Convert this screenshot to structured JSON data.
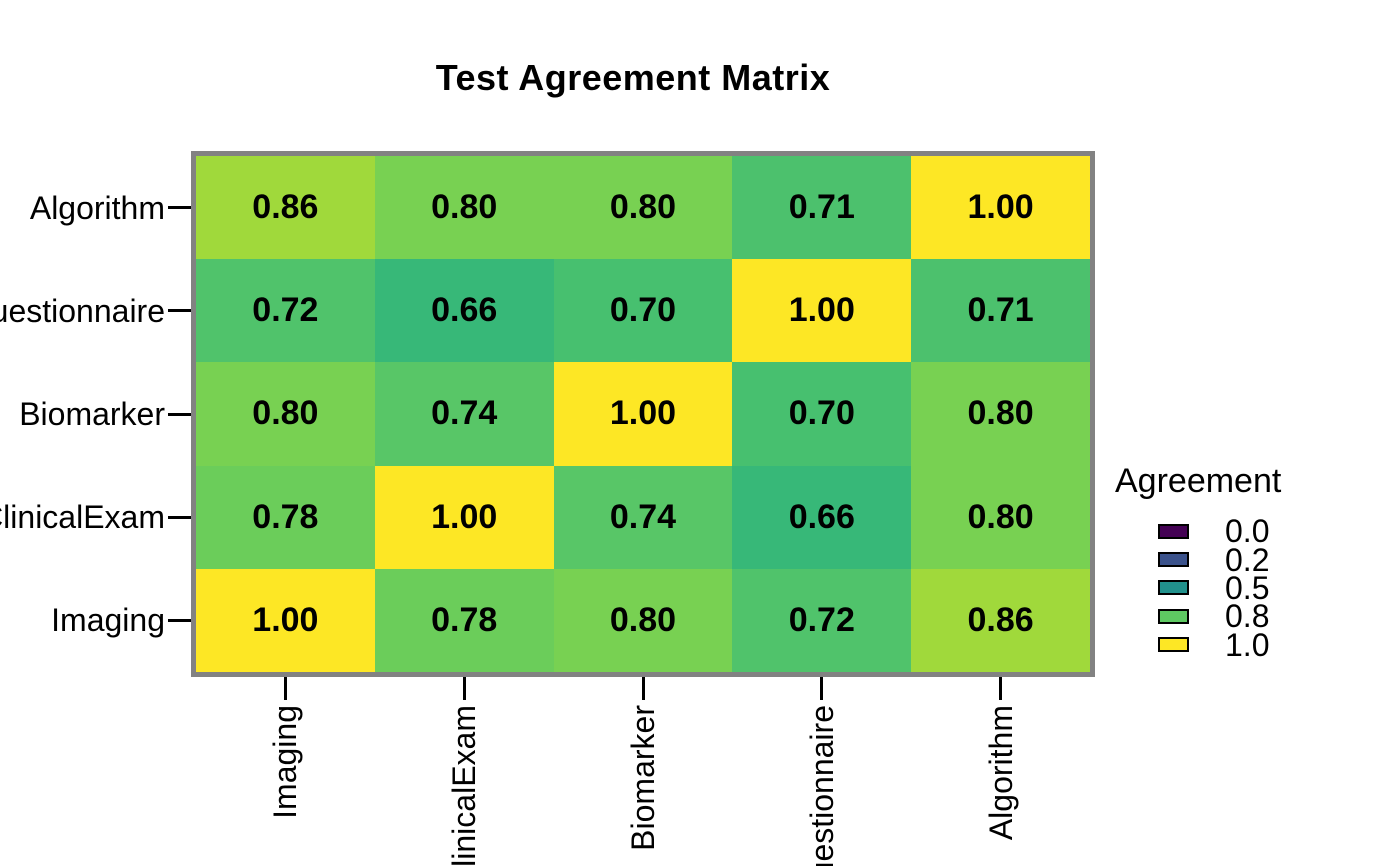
{
  "chart_data": {
    "type": "heatmap",
    "title": "Test Agreement Matrix",
    "x_categories": [
      "Imaging",
      "ClinicalExam",
      "Biomarker",
      "Questionnaire",
      "Algorithm"
    ],
    "y_categories": [
      "Algorithm",
      "Questionnaire",
      "Biomarker",
      "ClinicalExam",
      "Imaging"
    ],
    "matrix": [
      [
        0.86,
        0.8,
        0.8,
        0.71,
        1.0
      ],
      [
        0.72,
        0.66,
        0.7,
        1.0,
        0.71
      ],
      [
        0.8,
        0.74,
        1.0,
        0.7,
        0.8
      ],
      [
        0.78,
        1.0,
        0.74,
        0.66,
        0.8
      ],
      [
        1.0,
        0.78,
        0.8,
        0.72,
        0.86
      ]
    ],
    "value_range": [
      0,
      1
    ],
    "colormap": "viridis",
    "grid_lines": false,
    "value_colors": {
      "0.66": "#37b878",
      "0.70": "#47c06f",
      "0.71": "#4cc16d",
      "0.72": "#50c36b",
      "0.74": "#58c667",
      "0.78": "#6bcd5a",
      "0.80": "#78d152",
      "0.86": "#a0d93b",
      "1.00": "#fde725"
    },
    "legend": {
      "title": "Agreement",
      "position": "right",
      "entries": [
        {
          "label": "0.0",
          "color": "#440154"
        },
        {
          "label": "0.2",
          "color": "#3b528b"
        },
        {
          "label": "0.5",
          "color": "#21918c"
        },
        {
          "label": "0.8",
          "color": "#5ec962"
        },
        {
          "label": "1.0",
          "color": "#fde725"
        }
      ]
    }
  }
}
